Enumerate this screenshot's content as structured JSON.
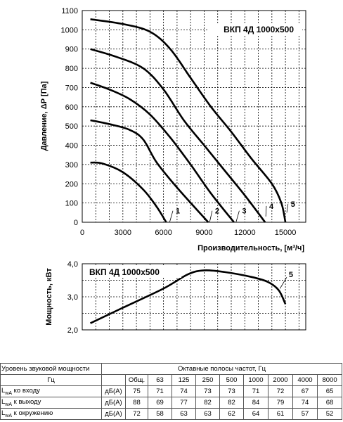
{
  "chart_data": [
    {
      "type": "line",
      "title": "ВКП 4Д 1000х500",
      "xlabel": "Производительность, [м³/ч]",
      "ylabel": "Давление, ΔР [Па]",
      "xlim": [
        0,
        16500
      ],
      "ylim": [
        0,
        1100
      ],
      "x_ticks": [
        0,
        3000,
        6000,
        9000,
        12000,
        15000
      ],
      "y_ticks": [
        0,
        100,
        200,
        300,
        400,
        500,
        600,
        700,
        800,
        900,
        1000,
        1100
      ],
      "grid": true,
      "series": [
        {
          "name": "1",
          "points": [
            [
              600,
              310
            ],
            [
              1500,
              305
            ],
            [
              3000,
              260
            ],
            [
              4500,
              170
            ],
            [
              5500,
              80
            ],
            [
              6200,
              0
            ]
          ]
        },
        {
          "name": "2",
          "points": [
            [
              600,
              530
            ],
            [
              2000,
              510
            ],
            [
              3500,
              480
            ],
            [
              4500,
              430
            ],
            [
              5500,
              310
            ],
            [
              7000,
              180
            ],
            [
              9300,
              0
            ]
          ]
        },
        {
          "name": "3",
          "points": [
            [
              600,
              725
            ],
            [
              2000,
              690
            ],
            [
              3500,
              640
            ],
            [
              5000,
              560
            ],
            [
              6500,
              440
            ],
            [
              8000,
              300
            ],
            [
              9500,
              150
            ],
            [
              11200,
              0
            ]
          ]
        },
        {
          "name": "4",
          "points": [
            [
              600,
              900
            ],
            [
              2500,
              860
            ],
            [
              4500,
              800
            ],
            [
              6000,
              690
            ],
            [
              7500,
              530
            ],
            [
              9000,
              400
            ],
            [
              10500,
              270
            ],
            [
              12000,
              140
            ],
            [
              13500,
              0
            ]
          ]
        },
        {
          "name": "5",
          "points": [
            [
              600,
              1055
            ],
            [
              3000,
              1030
            ],
            [
              5000,
              990
            ],
            [
              6500,
              900
            ],
            [
              8000,
              750
            ],
            [
              9500,
              600
            ],
            [
              11000,
              470
            ],
            [
              12500,
              330
            ],
            [
              14000,
              200
            ],
            [
              14700,
              100
            ],
            [
              15000,
              0
            ]
          ]
        }
      ]
    },
    {
      "type": "line",
      "title": "ВКП 4Д 1000х500",
      "xlabel": "",
      "ylabel": "Мощность, кВт",
      "xlim": [
        0,
        16500
      ],
      "ylim": [
        2.0,
        4.0
      ],
      "y_ticks": [
        "2,0",
        "3,0",
        "4,0"
      ],
      "grid": true,
      "series": [
        {
          "name": "5",
          "points": [
            [
              600,
              2.2
            ],
            [
              3000,
              2.67
            ],
            [
              6000,
              3.25
            ],
            [
              7800,
              3.68
            ],
            [
              9000,
              3.8
            ],
            [
              10500,
              3.75
            ],
            [
              12500,
              3.6
            ],
            [
              13700,
              3.45
            ],
            [
              14500,
              3.2
            ],
            [
              15000,
              2.78
            ]
          ]
        }
      ]
    }
  ],
  "sound_table": {
    "caption": "Уровень звуковой мощности",
    "band_caption": "Октавные полосы частот, Гц",
    "header_unit": "Гц",
    "header_total": "Общ.",
    "bands": [
      "63",
      "125",
      "250",
      "500",
      "1000",
      "2000",
      "4000",
      "8000"
    ],
    "rows": [
      {
        "lead": "L",
        "sub": "wA",
        "rest": " ко входу",
        "unit": "дБ(А)",
        "values": [
          "75",
          "71",
          "74",
          "73",
          "73",
          "71",
          "72",
          "67",
          "65"
        ]
      },
      {
        "lead": "L",
        "sub": "wA",
        "rest": " к выходу",
        "unit": "дБ(А)",
        "values": [
          "88",
          "69",
          "77",
          "82",
          "82",
          "84",
          "79",
          "74",
          "68"
        ]
      },
      {
        "lead": "L",
        "sub": "wA",
        "rest": " к окружению",
        "unit": "дБ(А)",
        "values": [
          "72",
          "58",
          "63",
          "63",
          "62",
          "64",
          "61",
          "57",
          "52"
        ]
      }
    ]
  }
}
